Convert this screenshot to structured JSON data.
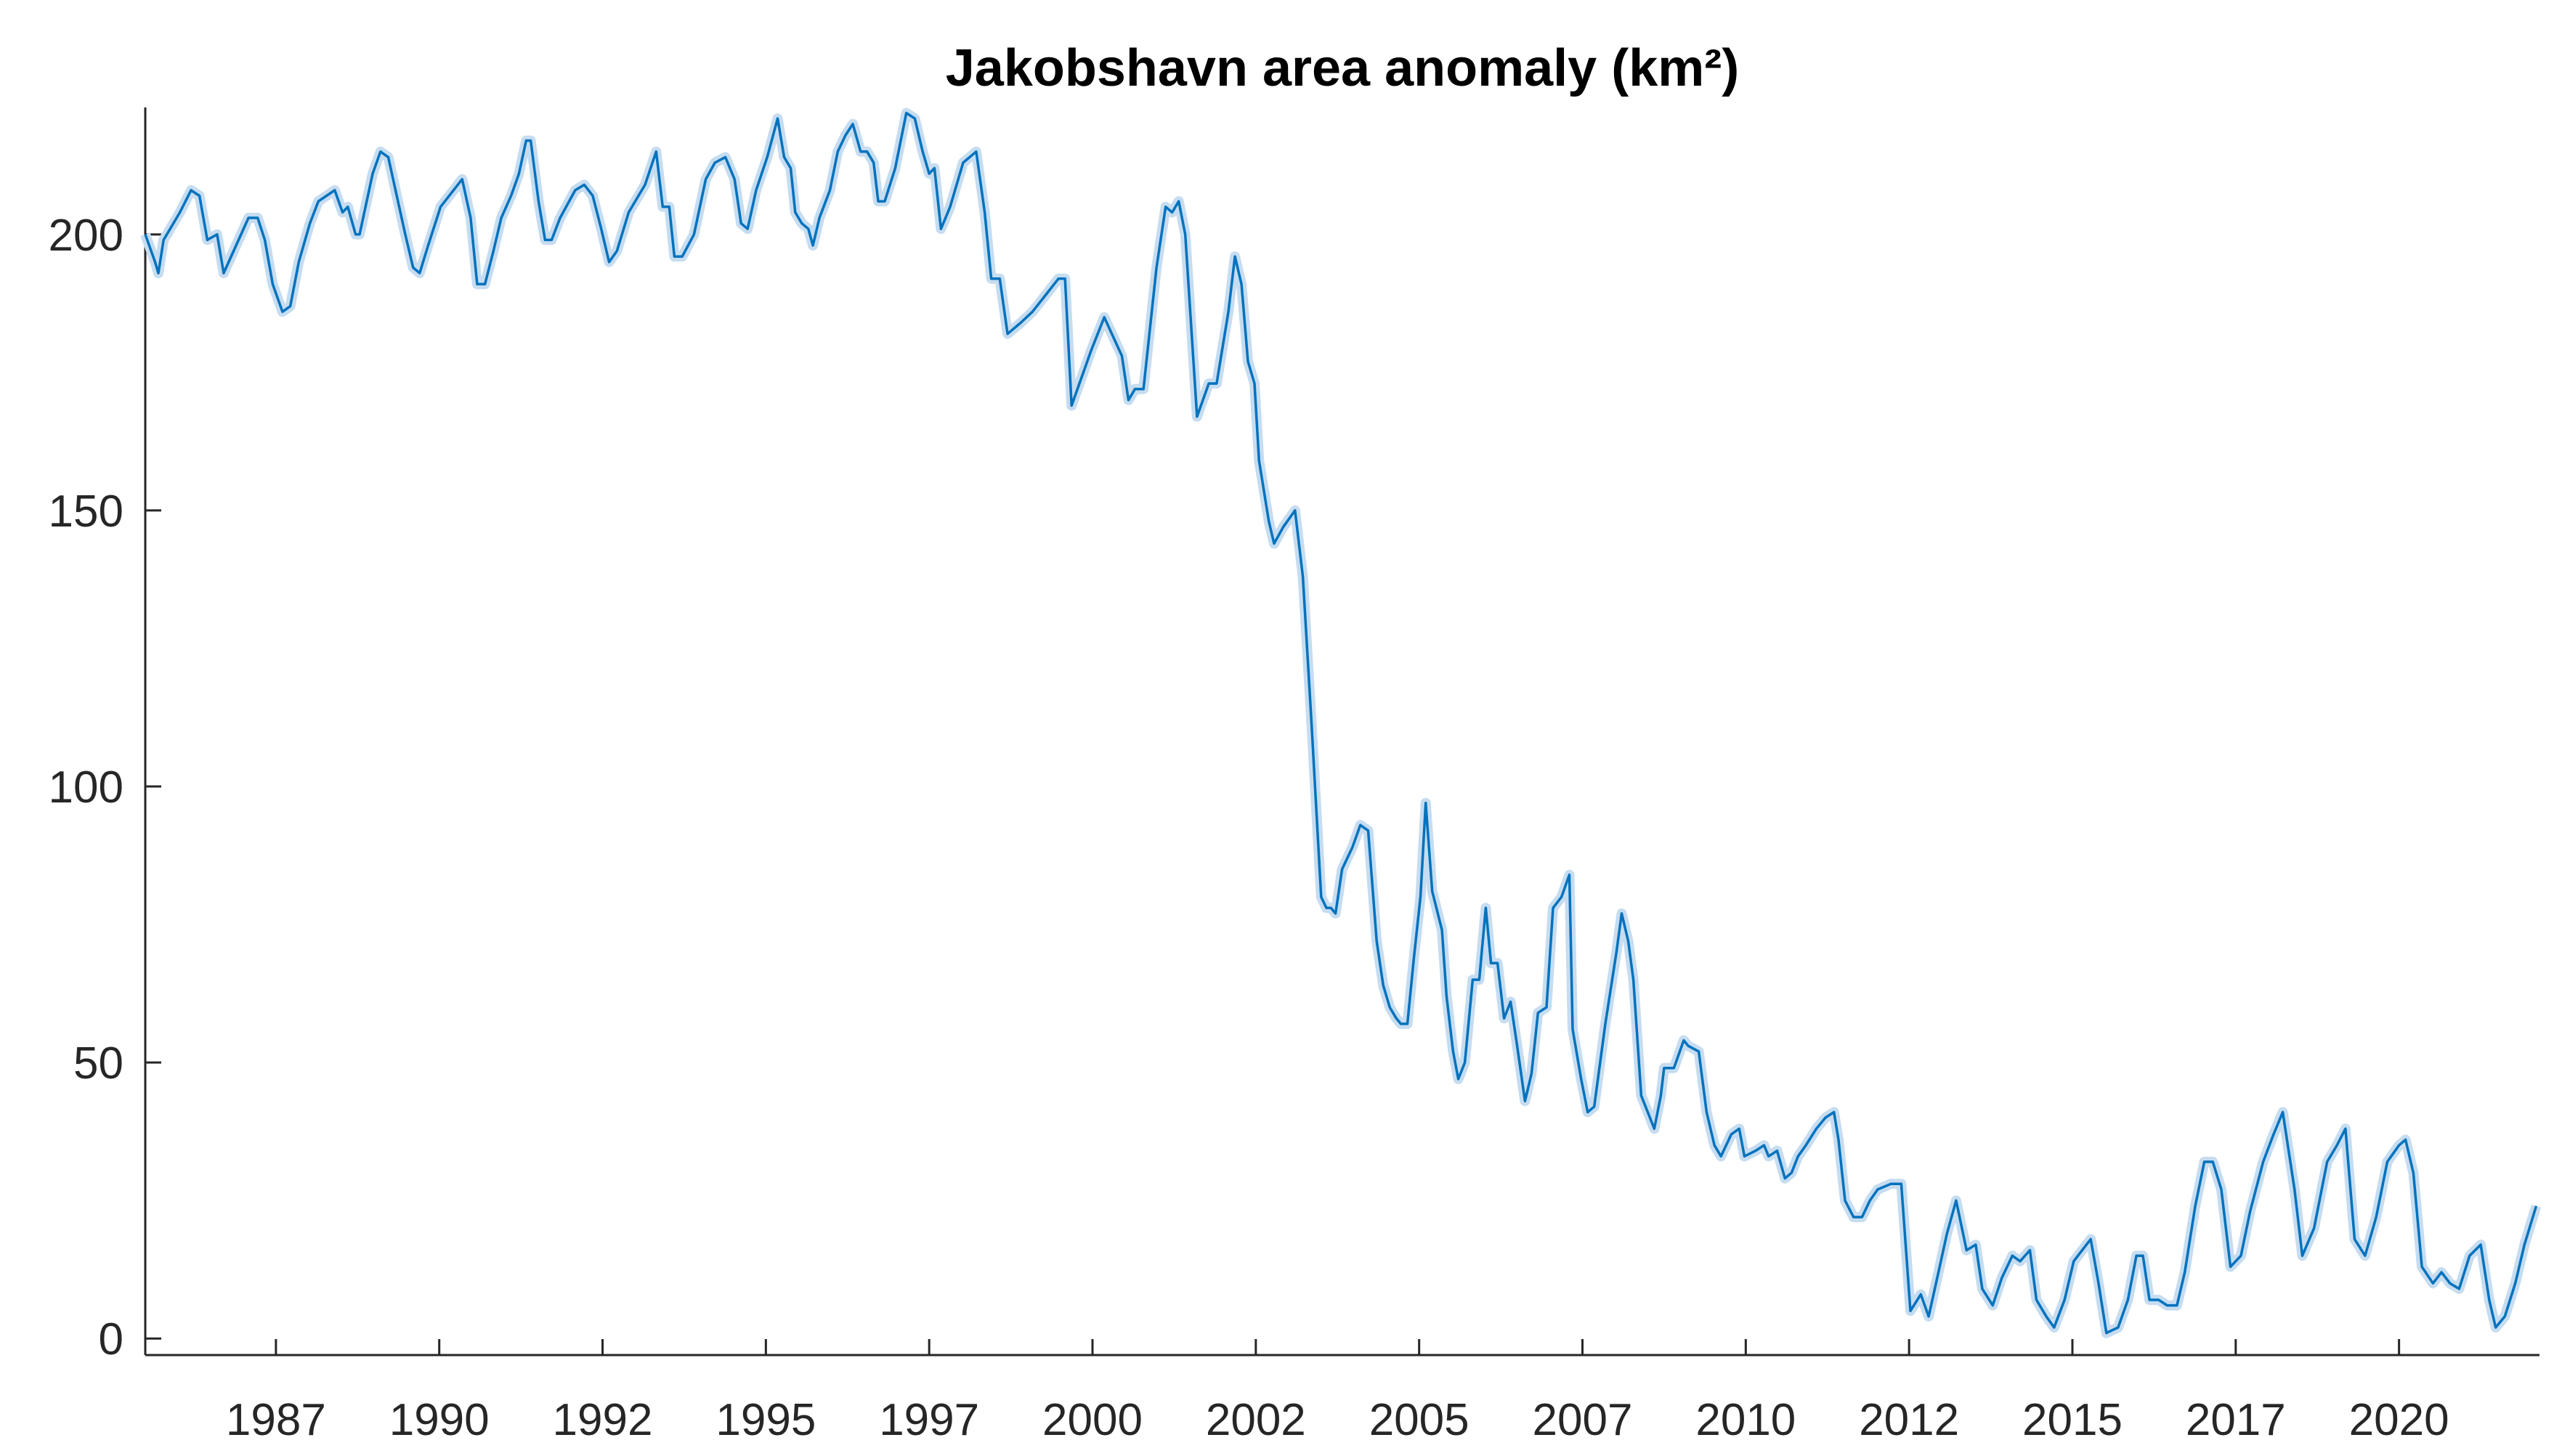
{
  "chart_data": {
    "type": "line",
    "title": "Jakobshavn area anomaly (km²)",
    "color": "#0072bd",
    "band_color": "#c6dcf0",
    "xlim": [
      1985.5,
      2022.15
    ],
    "ylim": [
      -3,
      223
    ],
    "xticks": [
      {
        "value": 1987.5,
        "label": "1987"
      },
      1990,
      {
        "value": 1992.5,
        "label": "1992"
      },
      1995,
      {
        "value": 1997.5,
        "label": "1997"
      },
      2000,
      {
        "value": 2002.5,
        "label": "2002"
      },
      2005,
      {
        "value": 2007.5,
        "label": "2007"
      },
      2010,
      {
        "value": 2012.5,
        "label": "2012"
      },
      2015,
      {
        "value": 2017.5,
        "label": "2017"
      },
      2020
    ],
    "yticks": [
      0,
      50,
      100,
      150,
      200
    ],
    "x": [
      1985.5,
      1985.65,
      1985.7,
      1985.78,
      1986.03,
      1986.2,
      1986.33,
      1986.45,
      1986.6,
      1986.7,
      1987.08,
      1987.22,
      1987.33,
      1987.45,
      1987.6,
      1987.72,
      1987.85,
      1988.02,
      1988.15,
      1988.4,
      1988.52,
      1988.6,
      1988.72,
      1988.78,
      1988.98,
      1989.1,
      1989.22,
      1989.35,
      1989.48,
      1989.6,
      1989.7,
      1989.83,
      1990.02,
      1990.35,
      1990.48,
      1990.58,
      1990.7,
      1990.83,
      1990.95,
      1991.1,
      1991.22,
      1991.33,
      1991.4,
      1991.52,
      1991.62,
      1991.72,
      1991.85,
      1992.08,
      1992.22,
      1992.35,
      1992.48,
      1992.6,
      1992.72,
      1992.9,
      1993.15,
      1993.32,
      1993.42,
      1993.52,
      1993.6,
      1993.72,
      1993.9,
      1994.08,
      1994.22,
      1994.38,
      1994.52,
      1994.62,
      1994.72,
      1994.85,
      1995.02,
      1995.18,
      1995.28,
      1995.38,
      1995.45,
      1995.55,
      1995.65,
      1995.72,
      1995.82,
      1995.98,
      1996.1,
      1996.22,
      1996.33,
      1996.45,
      1996.55,
      1996.65,
      1996.72,
      1996.82,
      1996.98,
      1997.15,
      1997.28,
      1997.4,
      1997.5,
      1997.58,
      1997.68,
      1997.82,
      1998.02,
      1998.22,
      1998.35,
      1998.45,
      1998.58,
      1998.7,
      1998.9,
      1999.08,
      1999.28,
      1999.48,
      1999.58,
      1999.68,
      1999.98,
      2000.18,
      2000.45,
      2000.55,
      2000.65,
      2000.78,
      2000.98,
      2001.12,
      2001.22,
      2001.32,
      2001.42,
      2001.6,
      2001.78,
      2001.9,
      2002.08,
      2002.18,
      2002.28,
      2002.38,
      2002.48,
      2002.55,
      2002.7,
      2002.78,
      2002.92,
      2003.1,
      2003.22,
      2003.35,
      2003.5,
      2003.58,
      2003.65,
      2003.72,
      2003.82,
      2003.98,
      2004.1,
      2004.22,
      2004.35,
      2004.45,
      2004.55,
      2004.65,
      2004.72,
      2004.82,
      2004.92,
      2005.02,
      2005.1,
      2005.2,
      2005.35,
      2005.42,
      2005.52,
      2005.6,
      2005.7,
      2005.82,
      2005.92,
      2006.02,
      2006.1,
      2006.2,
      2006.3,
      2006.4,
      2006.5,
      2006.62,
      2006.72,
      2006.82,
      2006.95,
      2007.05,
      2007.18,
      2007.3,
      2007.35,
      2007.48,
      2007.58,
      2007.68,
      2007.85,
      2008.02,
      2008.1,
      2008.2,
      2008.28,
      2008.4,
      2008.5,
      2008.6,
      2008.7,
      2008.75,
      2008.9,
      2009.05,
      2009.12,
      2009.28,
      2009.4,
      2009.52,
      2009.62,
      2009.78,
      2009.9,
      2009.98,
      2010.15,
      2010.28,
      2010.35,
      2010.48,
      2010.6,
      2010.7,
      2010.8,
      2010.92,
      2011.08,
      2011.22,
      2011.35,
      2011.42,
      2011.52,
      2011.65,
      2011.78,
      2011.9,
      2012.02,
      2012.22,
      2012.38,
      2012.52,
      2012.68,
      2012.8,
      2012.95,
      2013.08,
      2013.22,
      2013.38,
      2013.52,
      2013.62,
      2013.78,
      2013.92,
      2014.08,
      2014.2,
      2014.35,
      2014.45,
      2014.6,
      2014.72,
      2014.88,
      2015.02,
      2015.15,
      2015.28,
      2015.4,
      2015.52,
      2015.7,
      2015.85,
      2015.98,
      2016.08,
      2016.18,
      2016.32,
      2016.45,
      2016.6,
      2016.72,
      2016.88,
      2017.02,
      2017.15,
      2017.28,
      2017.42,
      2017.58,
      2017.72,
      2017.92,
      2018.08,
      2018.22,
      2018.4,
      2018.52,
      2018.7,
      2018.9,
      2019.05,
      2019.18,
      2019.32,
      2019.48,
      2019.65,
      2019.82,
      2020,
      2020.1,
      2020.22,
      2020.35,
      2020.52,
      2020.65,
      2020.78,
      2020.92,
      2021.08,
      2021.25,
      2021.38,
      2021.48,
      2021.62,
      2021.78,
      2021.92,
      2022.1
    ],
    "values": [
      200,
      195,
      193,
      199,
      204,
      208,
      207,
      199,
      200,
      193,
      203,
      203,
      199,
      191,
      186,
      187,
      195,
      202,
      206,
      208,
      204,
      205,
      200,
      200,
      211,
      215,
      214,
      207,
      200,
      194,
      193,
      198,
      205,
      210,
      203,
      191,
      191,
      197,
      203,
      207,
      211,
      217,
      217,
      206,
      199,
      199,
      203,
      208,
      209,
      207,
      201,
      195,
      197,
      204,
      209,
      215,
      205,
      205,
      196,
      196,
      200,
      210,
      213,
      214,
      210,
      202,
      201,
      208,
      214,
      221,
      214,
      212,
      204,
      202,
      201,
      198,
      203,
      208,
      215,
      218,
      220,
      215,
      215,
      213,
      206,
      206,
      212,
      222,
      221,
      215,
      211,
      212,
      201,
      205,
      213,
      215,
      204,
      192,
      192,
      182,
      184,
      186,
      189,
      192,
      192,
      169,
      179,
      185,
      178,
      170,
      172,
      172,
      194,
      205,
      204,
      206,
      200,
      167,
      173,
      173,
      186,
      196,
      191,
      177,
      173,
      159,
      148,
      144,
      147,
      150,
      138,
      112,
      80,
      78,
      78,
      77,
      85,
      89,
      93,
      92,
      72,
      64,
      60,
      58,
      57,
      57,
      69,
      80,
      97,
      81,
      74,
      62,
      52,
      47,
      50,
      65,
      65,
      78,
      68,
      68,
      58,
      61,
      53,
      43,
      48,
      59,
      60,
      78,
      80,
      84,
      56,
      47,
      41,
      42,
      57,
      70,
      77,
      72,
      65,
      44,
      41,
      38,
      44,
      49,
      49,
      54,
      53,
      52,
      41,
      35,
      33,
      37,
      38,
      33,
      34,
      35,
      33,
      34,
      29,
      30,
      33,
      35,
      38,
      40,
      41,
      36,
      25,
      22,
      22,
      25,
      27,
      28,
      28,
      5,
      8,
      4,
      12,
      19,
      25,
      16,
      17,
      9,
      6,
      11,
      15,
      14,
      16,
      7,
      4,
      2,
      7,
      14,
      16,
      18,
      10,
      1,
      2,
      7,
      15,
      15,
      7,
      7,
      6,
      6,
      12,
      24,
      32,
      32,
      27,
      13,
      15,
      23,
      32,
      37,
      41,
      27,
      15,
      20,
      32,
      35,
      38,
      18,
      15,
      22,
      32,
      35,
      36,
      30,
      13,
      10,
      12,
      10,
      9,
      15,
      17,
      7,
      2,
      4,
      10,
      17,
      24
    ]
  }
}
